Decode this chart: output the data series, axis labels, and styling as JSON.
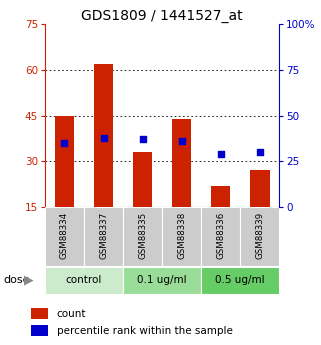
{
  "title": "GDS1809 / 1441527_at",
  "samples": [
    "GSM88334",
    "GSM88337",
    "GSM88335",
    "GSM88338",
    "GSM88336",
    "GSM88339"
  ],
  "counts": [
    45,
    62,
    33,
    44,
    22,
    27
  ],
  "percentiles": [
    35,
    38,
    37,
    36,
    29,
    30
  ],
  "groups": [
    {
      "label": "control",
      "samples": [
        0,
        1
      ],
      "color": "#cceacc"
    },
    {
      "label": "0.1 ug/ml",
      "samples": [
        2,
        3
      ],
      "color": "#99dd99"
    },
    {
      "label": "0.5 ug/ml",
      "samples": [
        4,
        5
      ],
      "color": "#66cc66"
    }
  ],
  "ylim_left": [
    15,
    75
  ],
  "ylim_right": [
    0,
    100
  ],
  "yticks_left": [
    15,
    30,
    45,
    60,
    75
  ],
  "yticks_right": [
    0,
    25,
    50,
    75,
    100
  ],
  "bar_color": "#cc2200",
  "dot_color": "#0000cc",
  "bar_width": 0.5,
  "left_axis_color": "#cc2200",
  "right_axis_color": "#0000cc",
  "grid_dotted_at": [
    30,
    45,
    60
  ],
  "sample_box_color": "#cccccc",
  "legend_count_color": "#cc2200",
  "legend_pct_color": "#0000cc",
  "fig_width": 3.21,
  "fig_height": 3.45,
  "dpi": 100
}
